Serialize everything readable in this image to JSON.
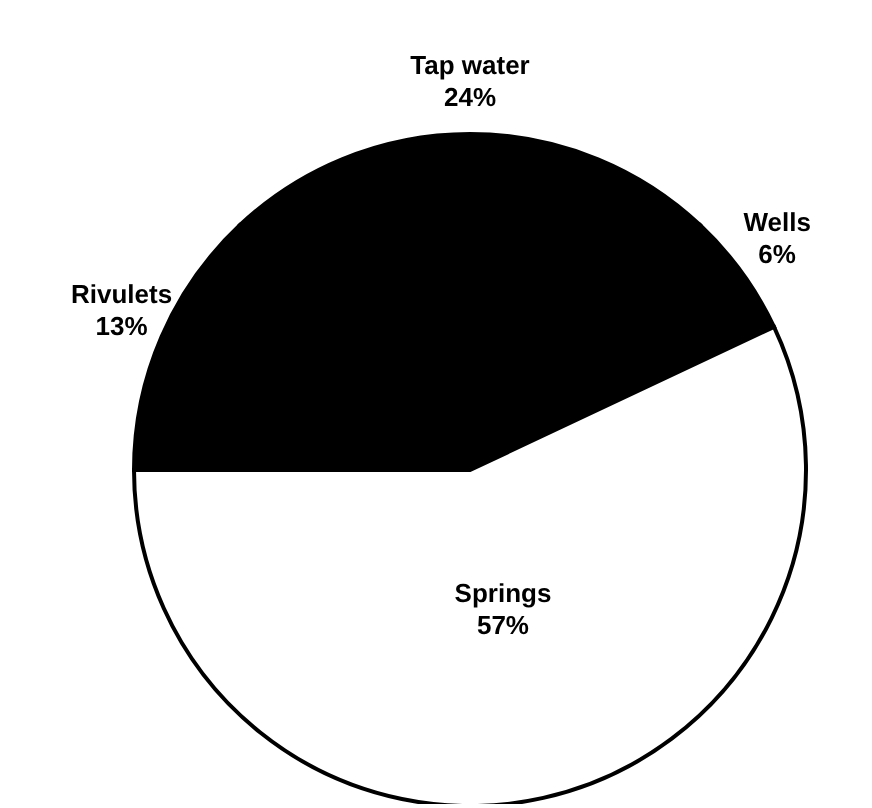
{
  "chart_data": {
    "type": "pie",
    "categories": [
      "Rivulets",
      "Tap water",
      "Wells",
      "Springs"
    ],
    "values": [
      13,
      24,
      6,
      57
    ],
    "colors": [
      "#000000",
      "#000000",
      "#000000",
      "#ffffff"
    ],
    "value_labels": [
      "13%",
      "24%",
      "6%",
      "57%"
    ],
    "legend": false
  }
}
